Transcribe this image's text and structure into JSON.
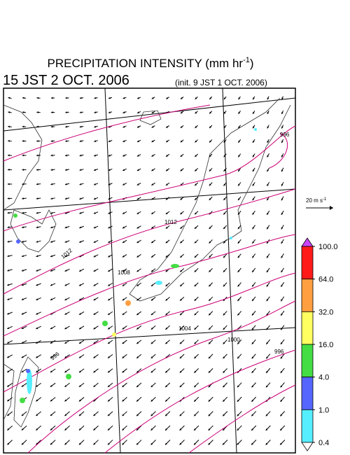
{
  "header": {
    "title": "PRECIPITATION INTENSITY (mm hr",
    "title_exponent": "-1",
    "title_close": ")",
    "valid_time": "15 JST 2 OCT. 2006",
    "init_time": "(init. 9 JST 1 OCT. 2006)"
  },
  "wind_scale": {
    "label": "20 m s",
    "exponent": "-1"
  },
  "isobars": {
    "labels": [
      "1012",
      "1012",
      "1008",
      "1004",
      "1000",
      "996",
      "996",
      "996"
    ]
  },
  "colorbar": {
    "levels": [
      {
        "value": 100,
        "label": "100.0"
      },
      {
        "value": 64,
        "label": "64.0"
      },
      {
        "value": 32,
        "label": "32.0"
      },
      {
        "value": 16,
        "label": "16.0"
      },
      {
        "value": 4,
        "label": "4.0"
      },
      {
        "value": 1,
        "label": "1.0"
      },
      {
        "value": 0.4,
        "label": "0.4"
      }
    ],
    "colors": [
      "#cc44ff",
      "#ff1a1a",
      "#ff9f3f",
      "#ffff60",
      "#44dd44",
      "#5566ff",
      "#55eeff",
      "#ffffff"
    ]
  }
}
